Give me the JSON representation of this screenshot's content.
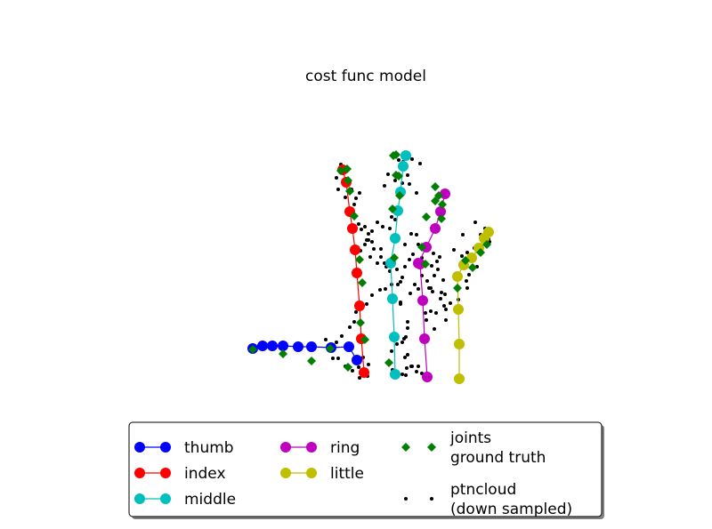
{
  "chart_data": {
    "type": "scatter",
    "title": "cost func model",
    "xlabel": "",
    "ylabel": "",
    "grid": false,
    "axes_visible": false,
    "legend_placement": "bottom-center",
    "series": [
      {
        "name": "thumb",
        "color": "#0000ff",
        "marker": "circle",
        "line": true,
        "x": [
          401,
          392,
          372,
          350,
          335,
          318,
          306,
          295,
          284
        ],
        "y": [
          405,
          390,
          391,
          390,
          390,
          389,
          389,
          389,
          392
        ]
      },
      {
        "name": "index",
        "color": "#ff0000",
        "marker": "circle",
        "line": true,
        "x": [
          409,
          406,
          404,
          401,
          399,
          396,
          393,
          389,
          385
        ],
        "y": [
          419,
          381,
          344,
          307,
          281,
          257,
          238,
          205,
          191
        ]
      },
      {
        "name": "middle",
        "color": "#00bfbf",
        "marker": "circle",
        "line": true,
        "x": [
          444,
          443,
          441,
          439,
          444,
          447,
          450,
          453,
          456
        ],
        "y": [
          421,
          379,
          336,
          296,
          268,
          237,
          216,
          187,
          175
        ]
      },
      {
        "name": "ring",
        "color": "#bf00bf",
        "marker": "circle",
        "line": true,
        "x": [
          480,
          477,
          475,
          472,
          470,
          479,
          489,
          495,
          500
        ],
        "y": [
          424,
          381,
          338,
          297,
          296,
          278,
          257,
          238,
          218
        ]
      },
      {
        "name": "little",
        "color": "#bfbf00",
        "marker": "circle",
        "line": true,
        "x": [
          516,
          516,
          515,
          514,
          521,
          530,
          538,
          544,
          549
        ],
        "y": [
          426,
          387,
          348,
          311,
          298,
          290,
          279,
          268,
          261
        ]
      },
      {
        "name": "joints\nground truth",
        "color": "#007f00",
        "marker": "diamond",
        "line": false,
        "x": [
          284,
          318,
          350,
          371,
          391,
          437,
          410,
          404,
          398,
          393,
          391,
          390,
          383,
          443,
          441,
          445,
          448,
          445,
          442,
          478,
          474,
          479,
          489,
          489,
          514,
          523,
          531,
          540,
          547,
          407,
          405,
          449,
          497,
          496,
          493
        ],
        "y": [
          393,
          398,
          406,
          392,
          413,
          408,
          382,
          292,
          243,
          215,
          203,
          190,
          192,
          290,
          235,
          197,
          198,
          174,
          175,
          297,
          278,
          244,
          226,
          210,
          324,
          293,
          301,
          284,
          275,
          318,
          363,
          220,
          230,
          246,
          220
        ]
      },
      {
        "name": "ptncloud\n(down sampled)",
        "color": "#000000",
        "marker": "dot",
        "line": false,
        "x": [
          383,
          380,
          378,
          390,
          395,
          400,
          404,
          398,
          388,
          403,
          392,
          406,
          410,
          410,
          414,
          418,
          405,
          416,
          428,
          424,
          432,
          441,
          438,
          446,
          450,
          452,
          455,
          460,
          455,
          462,
          468,
          464,
          470,
          474,
          480,
          484,
          488,
          492,
          498,
          496,
          486,
          482,
          476,
          478,
          490,
          501,
          506,
          500,
          510,
          520,
          525,
          530,
          533,
          540,
          545,
          550,
          536,
          518,
          524,
          512,
          468,
          452,
          458,
          444,
          436,
          432,
          448,
          453,
          460,
          463,
          472,
          444,
          440,
          438,
          430,
          424,
          418,
          412,
          414,
          420,
          428,
          434,
          440,
          447,
          450,
          461,
          466,
          470,
          474,
          479,
          488,
          501,
          499,
          495,
          484,
          458,
          456,
          452,
          440,
          446,
          455,
          457,
          456,
          452,
          441,
          396,
          388,
          380,
          374,
          370,
          366,
          378,
          384,
          393,
          398,
          400,
          412,
          418,
          427,
          433,
          440,
          450,
          458,
          454,
          463,
          470,
          474,
          468,
          462,
          458,
          494,
          487,
          474,
          485,
          491,
          519,
          522,
          527,
          525,
          515,
          540,
          549,
          552,
          545,
          534,
          404,
          413,
          414,
          408,
          403
        ],
        "y": [
          185,
          213,
          200,
          206,
          213,
          223,
          217,
          230,
          222,
          252,
          257,
          258,
          255,
          275,
          263,
          272,
          282,
          289,
          289,
          296,
          296,
          297,
          305,
          303,
          317,
          312,
          300,
          292,
          275,
          263,
          264,
          286,
          275,
          310,
          316,
          324,
          310,
          303,
          315,
          329,
          328,
          324,
          335,
          352,
          352,
          348,
          341,
          331,
          281,
          264,
          284,
          290,
          279,
          264,
          270,
          272,
          300,
          300,
          316,
          309,
          217,
          206,
          197,
          203,
          196,
          209,
          180,
          182,
          207,
          179,
          184,
          247,
          244,
          257,
          255,
          250,
          260,
          270,
          270,
          280,
          280,
          300,
          320,
          320,
          340,
          330,
          320,
          325,
          335,
          360,
          370,
          360,
          344,
          336,
          350,
          369,
          379,
          385,
          395,
          387,
          402,
          414,
          422,
          421,
          416,
          417,
          412,
          403,
          403,
          391,
          382,
          385,
          378,
          368,
          362,
          351,
          342,
          332,
          326,
          325,
          335,
          342,
          362,
          381,
          412,
          412,
          420,
          418,
          412,
          399,
          289,
          285,
          290,
          299,
          294,
          288,
          298,
          309,
          324,
          337,
          278,
          269,
          259,
          257,
          250,
          425,
          423,
          410,
          402,
          413
        ]
      }
    ],
    "legend_columns": 3
  }
}
